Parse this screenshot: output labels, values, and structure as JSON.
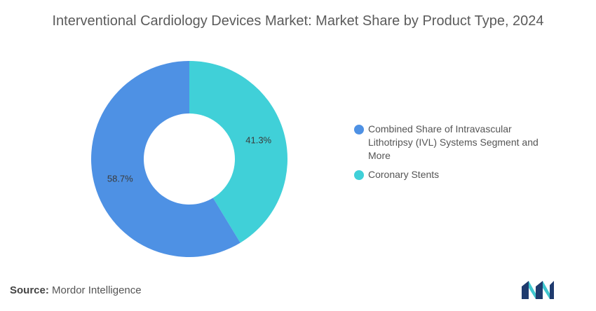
{
  "title": "Interventional Cardiology Devices Market: Market Share by Product Type, 2024",
  "chart_data": {
    "type": "pie",
    "donut": true,
    "title": "Interventional Cardiology Devices Market: Market Share by Product Type, 2024",
    "slices": [
      {
        "label": "Coronary Stents",
        "value": 41.3,
        "display": "41.3%",
        "color": "#40d0d8"
      },
      {
        "label": "Combined Share of Intravascular Lithotripsy (IVL) Systems Segment and More",
        "value": 58.7,
        "display": "58.7%",
        "color": "#4e91e4"
      }
    ],
    "legend_position": "right"
  },
  "legend": [
    {
      "label": "Combined Share of Intravascular Lithotripsy (IVL) Systems Segment and More",
      "color": "#4e91e4"
    },
    {
      "label": "Coronary Stents",
      "color": "#40d0d8"
    }
  ],
  "source": {
    "prefix": "Source:",
    "text": "Mordor Intelligence"
  },
  "logo": {
    "icon": "mordor-intelligence-logo",
    "colors": [
      "#1f3b6e",
      "#3fc7cf"
    ]
  }
}
